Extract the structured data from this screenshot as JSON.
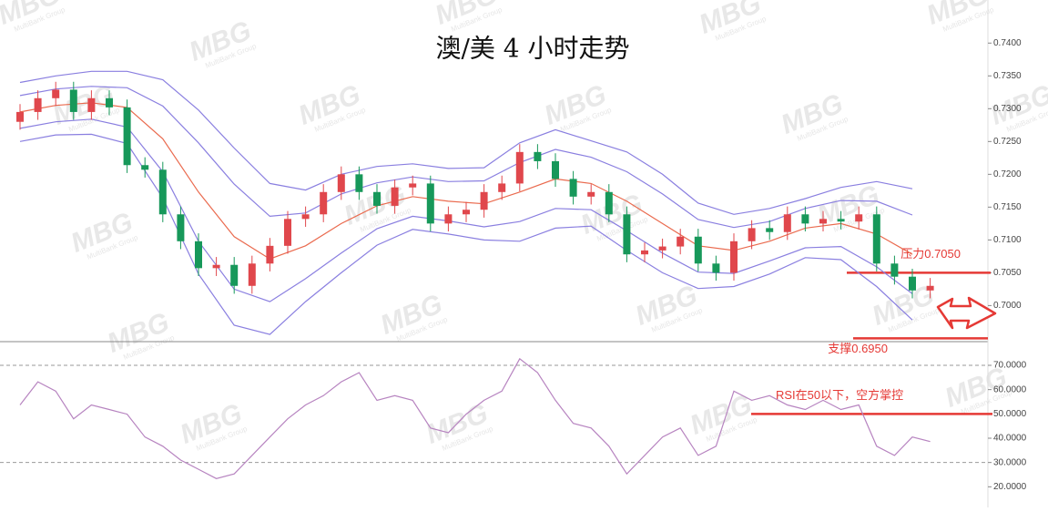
{
  "watermark": {
    "logo": "MBG",
    "text": "MultiBank Group"
  },
  "chart_data": [
    {
      "type": "candlestick",
      "title": "澳/美 4 小时走势",
      "up_color": "#e0474c",
      "down_color": "#17985a",
      "ylim": [
        0.6945,
        0.7424
      ],
      "yticks": [
        {
          "value": 0.74,
          "label": "0.7400"
        },
        {
          "value": 0.735,
          "label": "0.7350"
        },
        {
          "value": 0.73,
          "label": "0.7300"
        },
        {
          "value": 0.725,
          "label": "0.7250"
        },
        {
          "value": 0.72,
          "label": "0.7200"
        },
        {
          "value": 0.715,
          "label": "0.7150"
        },
        {
          "value": 0.71,
          "label": "0.7100"
        },
        {
          "value": 0.705,
          "label": "0.7050"
        },
        {
          "value": 0.7,
          "label": "0.7000"
        }
      ],
      "open": [
        0.728,
        0.7295,
        0.7316,
        0.7329,
        0.7295,
        0.7316,
        0.7302,
        0.7214,
        0.7207,
        0.7139,
        0.7098,
        0.7057,
        0.7062,
        0.703,
        0.7064,
        0.7091,
        0.7132,
        0.7139,
        0.7173,
        0.72,
        0.7173,
        0.7152,
        0.718,
        0.7186,
        0.7125,
        0.7139,
        0.7146,
        0.7173,
        0.7186,
        0.7234,
        0.722,
        0.7193,
        0.7166,
        0.7173,
        0.7139,
        0.7078,
        0.7084,
        0.709,
        0.7105,
        0.7064,
        0.705,
        0.7098,
        0.7118,
        0.7112,
        0.7139,
        0.7125,
        0.7132,
        0.7128,
        0.7139,
        0.7064,
        0.7044,
        0.7023
      ],
      "high": [
        0.7307,
        0.7328,
        0.7341,
        0.7341,
        0.7328,
        0.7328,
        0.7314,
        0.7226,
        0.7219,
        0.7151,
        0.711,
        0.7074,
        0.7074,
        0.7076,
        0.7103,
        0.7144,
        0.7151,
        0.7185,
        0.7212,
        0.7212,
        0.7185,
        0.7192,
        0.7198,
        0.7198,
        0.7151,
        0.7158,
        0.7185,
        0.7198,
        0.7246,
        0.7246,
        0.7232,
        0.7205,
        0.7185,
        0.7185,
        0.7151,
        0.7096,
        0.7102,
        0.7117,
        0.7117,
        0.7076,
        0.711,
        0.713,
        0.713,
        0.7151,
        0.7151,
        0.7144,
        0.7144,
        0.7151,
        0.7151,
        0.7076,
        0.7056,
        0.7042
      ],
      "low": [
        0.7268,
        0.7283,
        0.7304,
        0.7283,
        0.7283,
        0.729,
        0.7202,
        0.7195,
        0.7127,
        0.7086,
        0.7045,
        0.7045,
        0.7018,
        0.7018,
        0.7052,
        0.7079,
        0.712,
        0.7127,
        0.7161,
        0.7161,
        0.714,
        0.714,
        0.7168,
        0.7113,
        0.7113,
        0.7127,
        0.7134,
        0.7161,
        0.7174,
        0.7208,
        0.7181,
        0.7154,
        0.7154,
        0.7127,
        0.7066,
        0.7066,
        0.7072,
        0.7078,
        0.7052,
        0.7038,
        0.7038,
        0.7086,
        0.71,
        0.71,
        0.7113,
        0.7113,
        0.7116,
        0.7116,
        0.7052,
        0.7032,
        0.7011,
        0.7011
      ],
      "close": [
        0.7295,
        0.7316,
        0.7329,
        0.7295,
        0.7316,
        0.7302,
        0.7214,
        0.7207,
        0.7139,
        0.7098,
        0.7057,
        0.7062,
        0.703,
        0.7064,
        0.7091,
        0.7132,
        0.7139,
        0.7173,
        0.72,
        0.7173,
        0.7152,
        0.718,
        0.7186,
        0.7125,
        0.7139,
        0.7146,
        0.7173,
        0.7186,
        0.7234,
        0.722,
        0.7193,
        0.7166,
        0.7173,
        0.7139,
        0.7078,
        0.7084,
        0.709,
        0.7105,
        0.7064,
        0.705,
        0.7098,
        0.7118,
        0.7112,
        0.7139,
        0.7125,
        0.7132,
        0.7128,
        0.7139,
        0.7064,
        0.7044,
        0.7023,
        0.703
      ],
      "series": [
        {
          "color": "#8a7fe0",
          "x": [
            0,
            2,
            4,
            6,
            8,
            10,
            12,
            14,
            16,
            18,
            20,
            22,
            24,
            26,
            28,
            30,
            32,
            34,
            36,
            38,
            40,
            42,
            44,
            46,
            48,
            50
          ],
          "values": [
            0.734,
            0.735,
            0.7357,
            0.7357,
            0.7344,
            0.7298,
            0.724,
            0.7186,
            0.7176,
            0.72,
            0.7212,
            0.7216,
            0.7209,
            0.721,
            0.7248,
            0.7268,
            0.7251,
            0.7234,
            0.72,
            0.7156,
            0.7139,
            0.7148,
            0.7163,
            0.718,
            0.7189,
            0.7178
          ]
        },
        {
          "color": "#8a7fe0",
          "x": [
            0,
            2,
            4,
            6,
            8,
            10,
            12,
            14,
            16,
            18,
            20,
            22,
            24,
            26,
            28,
            30,
            32,
            34,
            36,
            38,
            40,
            42,
            44,
            46,
            48,
            50
          ],
          "values": [
            0.732,
            0.733,
            0.7334,
            0.7332,
            0.7304,
            0.7248,
            0.7185,
            0.7136,
            0.7141,
            0.717,
            0.7187,
            0.7196,
            0.7189,
            0.719,
            0.7218,
            0.7238,
            0.7226,
            0.7204,
            0.717,
            0.7131,
            0.7119,
            0.7128,
            0.7148,
            0.716,
            0.7159,
            0.7138
          ]
        },
        {
          "color": "#ea6a4e",
          "x": [
            0,
            2,
            4,
            6,
            8,
            10,
            12,
            14,
            16,
            18,
            20,
            22,
            24,
            26,
            28,
            30,
            32,
            34,
            36,
            38,
            40,
            42,
            44,
            46,
            48,
            50
          ],
          "values": [
            0.7295,
            0.7305,
            0.7309,
            0.7302,
            0.7254,
            0.7173,
            0.7105,
            0.7071,
            0.7091,
            0.7125,
            0.7152,
            0.7166,
            0.7159,
            0.7155,
            0.7173,
            0.7193,
            0.7186,
            0.7159,
            0.7125,
            0.7091,
            0.7084,
            0.7098,
            0.7118,
            0.7125,
            0.7109,
            0.7078
          ]
        },
        {
          "color": "#8a7fe0",
          "x": [
            0,
            2,
            4,
            6,
            8,
            10,
            12,
            14,
            16,
            18,
            20,
            22,
            24,
            26,
            28,
            30,
            32,
            34,
            36,
            38,
            40,
            42,
            44,
            46,
            48,
            50
          ],
          "values": [
            0.727,
            0.728,
            0.7284,
            0.7272,
            0.7204,
            0.7098,
            0.7025,
            0.7006,
            0.7041,
            0.708,
            0.7117,
            0.7136,
            0.7129,
            0.712,
            0.7128,
            0.7148,
            0.7146,
            0.7114,
            0.708,
            0.7051,
            0.7049,
            0.7068,
            0.7088,
            0.709,
            0.7059,
            0.7018
          ]
        },
        {
          "color": "#8a7fe0",
          "x": [
            0,
            2,
            4,
            6,
            8,
            10,
            12,
            14,
            16,
            18,
            20,
            22,
            24,
            26,
            28,
            30,
            32,
            34,
            36,
            38,
            40,
            42,
            44,
            46,
            48,
            50
          ],
          "values": [
            0.725,
            0.726,
            0.7261,
            0.7247,
            0.7164,
            0.7048,
            0.697,
            0.6956,
            0.7006,
            0.705,
            0.7092,
            0.7116,
            0.7109,
            0.71,
            0.7098,
            0.7118,
            0.7121,
            0.7084,
            0.705,
            0.7026,
            0.7029,
            0.7048,
            0.7073,
            0.707,
            0.7029,
            0.6978
          ]
        }
      ],
      "levels": [
        {
          "label": "压力0.7050",
          "value": 0.705,
          "color": "#e53935"
        },
        {
          "label": "支撑0.6950",
          "value": 0.695,
          "color": "#e53935"
        }
      ]
    },
    {
      "type": "line",
      "ylim": [
        16,
        79
      ],
      "yticks": [
        {
          "value": 70,
          "label": "70.0000"
        },
        {
          "value": 60,
          "label": "60.0000"
        },
        {
          "value": 50,
          "label": "50.0000"
        },
        {
          "value": 40,
          "label": "40.0000"
        },
        {
          "value": 30,
          "label": "30.0000"
        },
        {
          "value": 20,
          "label": "20.0000"
        }
      ],
      "series": [
        {
          "color": "#b784c0",
          "values": [
            53.7,
            63.2,
            59.4,
            48,
            53.7,
            51.8,
            49.9,
            40.5,
            36.7,
            31,
            27.2,
            23.4,
            25.3,
            32.9,
            40.5,
            48,
            53.7,
            57.5,
            63.2,
            67,
            55.6,
            57.5,
            55.6,
            44.2,
            42.3,
            49.9,
            55.6,
            59.4,
            72.7,
            67,
            55.6,
            46.1,
            44.2,
            36.7,
            25.3,
            32.9,
            40.5,
            44.2,
            32.9,
            36.7,
            59.4,
            55.6,
            57.5,
            53.7,
            51.8,
            55.6,
            51.8,
            53.7,
            36.7,
            32.9,
            40.5,
            38.6
          ]
        }
      ],
      "levels": [
        {
          "value": 70,
          "color": "#9a9a9a",
          "dashed": true
        },
        {
          "value": 30,
          "color": "#9a9a9a",
          "dashed": true
        },
        {
          "label": "RSI在50以下，空方掌控",
          "value": 50,
          "color": "#e53935"
        }
      ]
    }
  ]
}
